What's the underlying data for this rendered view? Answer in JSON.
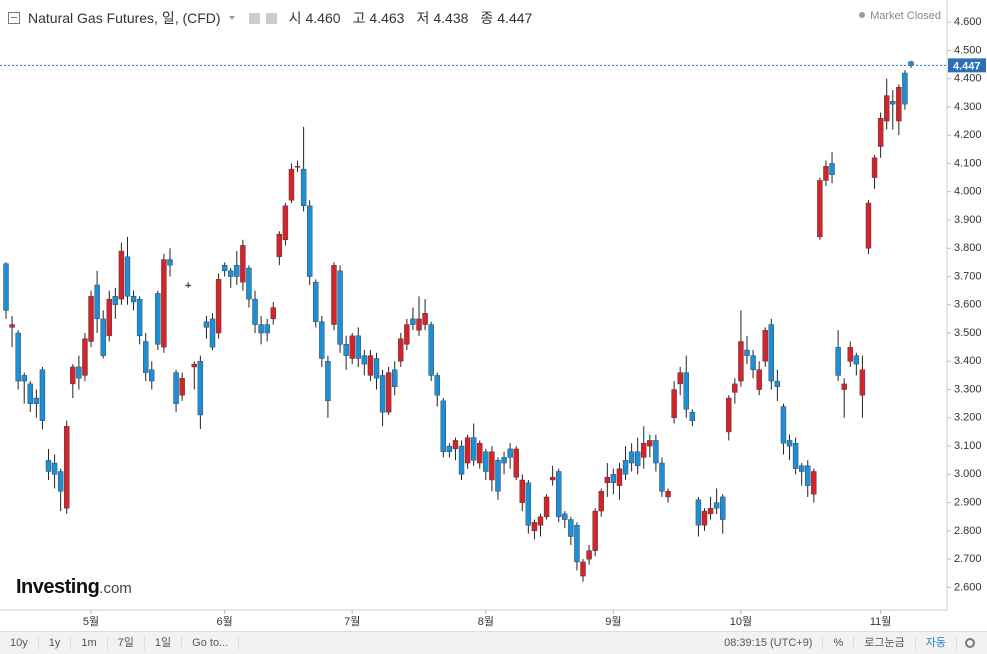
{
  "header": {
    "open": {
      "label": "시",
      "value": "4.460"
    },
    "high": {
      "label": "고",
      "value": "4.463"
    },
    "low": {
      "label": "저",
      "value": "4.438"
    },
    "close": {
      "label": "종",
      "value": "4.447"
    },
    "status": "Market Closed"
  },
  "logo": {
    "name": "Investing",
    "suffix": ".com"
  },
  "toolbar": {
    "ranges": [
      "10y",
      "1y",
      "1m",
      "7일",
      "1일"
    ],
    "goto": "Go to...",
    "time": "08:39:15 (UTC+9)",
    "percent": "%",
    "log": "로그눈금",
    "auto": "자동"
  },
  "chart_data": {
    "type": "candlestick",
    "title": "Natural Gas Futures, 일, (CFD)",
    "up_color": "#d3242b",
    "down_color": "#1e8ed6",
    "wick_color": "#222",
    "ylim": [
      2.52,
      4.65
    ],
    "yticks": [
      {
        "value": 2.6,
        "label": "2.600"
      },
      {
        "value": 2.7,
        "label": "2.700"
      },
      {
        "value": 2.8,
        "label": "2.800"
      },
      {
        "value": 2.9,
        "label": "2.900"
      },
      {
        "value": 3.0,
        "label": "3.000"
      },
      {
        "value": 3.1,
        "label": "3.100"
      },
      {
        "value": 3.2,
        "label": "3.200"
      },
      {
        "value": 3.3,
        "label": "3.300"
      },
      {
        "value": 3.4,
        "label": "3.400"
      },
      {
        "value": 3.5,
        "label": "3.500"
      },
      {
        "value": 3.6,
        "label": "3.600"
      },
      {
        "value": 3.7,
        "label": "3.700"
      },
      {
        "value": 3.8,
        "label": "3.800"
      },
      {
        "value": 3.9,
        "label": "3.900"
      },
      {
        "value": 4.0,
        "label": "4.000"
      },
      {
        "value": 4.1,
        "label": "4.100"
      },
      {
        "value": 4.2,
        "label": "4.200"
      },
      {
        "value": 4.3,
        "label": "4.300"
      },
      {
        "value": 4.4,
        "label": "4.400"
      },
      {
        "value": 4.5,
        "label": "4.500"
      },
      {
        "value": 4.6,
        "label": "4.600"
      }
    ],
    "last_price": {
      "value": 4.447,
      "label": "4.447",
      "color": "#2a6fb8"
    },
    "categories": [
      null,
      null,
      null,
      null,
      null,
      null,
      null,
      null,
      null,
      null,
      null,
      null,
      null,
      null,
      "5월",
      null,
      null,
      null,
      null,
      null,
      null,
      null,
      null,
      null,
      null,
      null,
      null,
      null,
      null,
      null,
      null,
      null,
      null,
      null,
      null,
      null,
      "6월",
      null,
      null,
      null,
      null,
      null,
      null,
      null,
      null,
      null,
      null,
      null,
      null,
      null,
      null,
      null,
      null,
      null,
      null,
      null,
      null,
      "7월",
      null,
      null,
      null,
      null,
      null,
      null,
      null,
      null,
      null,
      null,
      null,
      null,
      null,
      null,
      null,
      null,
      null,
      null,
      null,
      null,
      null,
      "8월",
      null,
      null,
      null,
      null,
      null,
      null,
      null,
      null,
      null,
      null,
      null,
      null,
      null,
      null,
      null,
      null,
      null,
      null,
      null,
      null,
      "9월",
      null,
      null,
      null,
      null,
      null,
      null,
      null,
      null,
      null,
      null,
      null,
      null,
      null,
      null,
      null,
      null,
      null,
      null,
      null,
      null,
      "10월",
      null,
      null,
      null,
      null,
      null,
      null,
      null,
      null,
      null,
      null,
      null,
      null,
      null,
      null,
      null,
      null,
      null,
      null,
      null,
      null,
      null,
      null,
      "11월",
      null,
      null,
      null,
      null,
      null
    ],
    "ohlc": [
      [
        3.745,
        3.75,
        3.55,
        3.58
      ],
      [
        3.52,
        3.56,
        3.45,
        3.53
      ],
      [
        3.5,
        3.51,
        3.3,
        3.33
      ],
      [
        3.35,
        3.36,
        3.25,
        3.33
      ],
      [
        3.32,
        3.33,
        3.22,
        3.25
      ],
      [
        3.27,
        3.3,
        3.2,
        3.25
      ],
      [
        3.37,
        3.38,
        3.16,
        3.19
      ],
      [
        3.05,
        3.09,
        2.98,
        3.01
      ],
      [
        3.04,
        3.07,
        2.95,
        3.0
      ],
      [
        3.01,
        3.02,
        2.87,
        2.94
      ],
      [
        2.88,
        3.19,
        2.86,
        3.17
      ],
      [
        3.32,
        3.39,
        3.27,
        3.38
      ],
      [
        3.38,
        3.42,
        3.3,
        3.34
      ],
      [
        3.35,
        3.5,
        3.33,
        3.48
      ],
      [
        3.47,
        3.65,
        3.45,
        3.63
      ],
      [
        3.67,
        3.72,
        3.5,
        3.55
      ],
      [
        3.55,
        3.58,
        3.41,
        3.42
      ],
      [
        3.49,
        3.65,
        3.47,
        3.62
      ],
      [
        3.63,
        3.66,
        3.55,
        3.6
      ],
      [
        3.62,
        3.82,
        3.6,
        3.79
      ],
      [
        3.77,
        3.84,
        3.6,
        3.63
      ],
      [
        3.63,
        3.65,
        3.58,
        3.61
      ],
      [
        3.62,
        3.63,
        3.46,
        3.49
      ],
      [
        3.47,
        3.5,
        3.33,
        3.36
      ],
      [
        3.37,
        3.4,
        3.3,
        3.33
      ],
      [
        3.64,
        3.65,
        3.44,
        3.46
      ],
      [
        3.45,
        3.78,
        3.43,
        3.76
      ],
      [
        3.76,
        3.8,
        3.7,
        3.74
      ],
      [
        3.36,
        3.37,
        3.22,
        3.25
      ],
      [
        3.28,
        3.36,
        3.26,
        3.34
      ],
      [
        3.67,
        3.68,
        3.66,
        3.67
      ],
      [
        3.38,
        3.4,
        3.3,
        3.39
      ],
      [
        3.4,
        3.42,
        3.16,
        3.21
      ],
      [
        3.54,
        3.56,
        3.48,
        3.52
      ],
      [
        3.55,
        3.57,
        3.44,
        3.45
      ],
      [
        3.5,
        3.71,
        3.48,
        3.69
      ],
      [
        3.74,
        3.75,
        3.7,
        3.72
      ],
      [
        3.72,
        3.73,
        3.66,
        3.7
      ],
      [
        3.74,
        3.79,
        3.67,
        3.7
      ],
      [
        3.68,
        3.83,
        3.65,
        3.81
      ],
      [
        3.73,
        3.74,
        3.59,
        3.62
      ],
      [
        3.62,
        3.65,
        3.5,
        3.53
      ],
      [
        3.53,
        3.56,
        3.46,
        3.5
      ],
      [
        3.53,
        3.55,
        3.47,
        3.5
      ],
      [
        3.55,
        3.61,
        3.53,
        3.59
      ],
      [
        3.77,
        3.86,
        3.74,
        3.85
      ],
      [
        3.83,
        3.96,
        3.81,
        3.95
      ],
      [
        3.97,
        4.1,
        3.96,
        4.08
      ],
      [
        4.09,
        4.11,
        4.07,
        4.09
      ],
      [
        4.08,
        4.23,
        3.93,
        3.95
      ],
      [
        3.95,
        3.97,
        3.67,
        3.7
      ],
      [
        3.68,
        3.69,
        3.52,
        3.54
      ],
      [
        3.54,
        3.56,
        3.38,
        3.41
      ],
      [
        3.4,
        3.42,
        3.2,
        3.26
      ],
      [
        3.53,
        3.75,
        3.51,
        3.74
      ],
      [
        3.72,
        3.74,
        3.43,
        3.46
      ],
      [
        3.46,
        3.49,
        3.37,
        3.42
      ],
      [
        3.41,
        3.5,
        3.39,
        3.49
      ],
      [
        3.49,
        3.52,
        3.38,
        3.41
      ],
      [
        3.42,
        3.44,
        3.35,
        3.39
      ],
      [
        3.35,
        3.44,
        3.33,
        3.42
      ],
      [
        3.41,
        3.43,
        3.3,
        3.34
      ],
      [
        3.35,
        3.37,
        3.17,
        3.22
      ],
      [
        3.22,
        3.38,
        3.21,
        3.36
      ],
      [
        3.37,
        3.4,
        3.28,
        3.31
      ],
      [
        3.4,
        3.5,
        3.38,
        3.48
      ],
      [
        3.46,
        3.55,
        3.44,
        3.53
      ],
      [
        3.55,
        3.59,
        3.51,
        3.53
      ],
      [
        3.51,
        3.63,
        3.49,
        3.55
      ],
      [
        3.53,
        3.62,
        3.51,
        3.57
      ],
      [
        3.53,
        3.54,
        3.33,
        3.35
      ],
      [
        3.35,
        3.36,
        3.24,
        3.28
      ],
      [
        3.26,
        3.27,
        3.06,
        3.08
      ],
      [
        3.1,
        3.11,
        3.06,
        3.08
      ],
      [
        3.09,
        3.13,
        3.05,
        3.12
      ],
      [
        3.1,
        3.12,
        2.98,
        3.0
      ],
      [
        3.04,
        3.14,
        3.02,
        3.13
      ],
      [
        3.13,
        3.18,
        3.03,
        3.05
      ],
      [
        3.04,
        3.12,
        3.02,
        3.11
      ],
      [
        3.08,
        3.09,
        2.98,
        3.01
      ],
      [
        2.98,
        3.1,
        2.94,
        3.08
      ],
      [
        3.05,
        3.06,
        2.91,
        2.94
      ],
      [
        3.06,
        3.08,
        3.0,
        3.04
      ],
      [
        3.09,
        3.11,
        3.02,
        3.06
      ],
      [
        2.99,
        3.1,
        2.98,
        3.09
      ],
      [
        2.9,
        3.0,
        2.87,
        2.98
      ],
      [
        2.97,
        2.98,
        2.79,
        2.82
      ],
      [
        2.8,
        2.84,
        2.77,
        2.83
      ],
      [
        2.82,
        2.86,
        2.78,
        2.85
      ],
      [
        2.85,
        2.93,
        2.84,
        2.92
      ],
      [
        2.98,
        3.03,
        2.96,
        2.99
      ],
      [
        3.01,
        3.02,
        2.83,
        2.85
      ],
      [
        2.86,
        2.87,
        2.81,
        2.84
      ],
      [
        2.84,
        2.85,
        2.75,
        2.78
      ],
      [
        2.82,
        2.83,
        2.66,
        2.69
      ],
      [
        2.64,
        2.7,
        2.62,
        2.69
      ],
      [
        2.7,
        2.75,
        2.68,
        2.73
      ],
      [
        2.73,
        2.88,
        2.71,
        2.87
      ],
      [
        2.87,
        2.95,
        2.85,
        2.94
      ],
      [
        2.97,
        3.04,
        2.92,
        2.99
      ],
      [
        3.0,
        3.02,
        2.93,
        2.97
      ],
      [
        2.96,
        3.04,
        2.91,
        3.02
      ],
      [
        3.05,
        3.1,
        2.98,
        3.0
      ],
      [
        3.08,
        3.11,
        3.01,
        3.04
      ],
      [
        3.08,
        3.13,
        3.0,
        3.03
      ],
      [
        3.06,
        3.17,
        3.02,
        3.11
      ],
      [
        3.1,
        3.14,
        3.06,
        3.12
      ],
      [
        3.12,
        3.14,
        3.01,
        3.04
      ],
      [
        3.04,
        3.06,
        2.92,
        2.94
      ],
      [
        2.92,
        2.95,
        2.9,
        2.94
      ],
      [
        3.2,
        3.33,
        3.18,
        3.3
      ],
      [
        3.32,
        3.38,
        3.28,
        3.36
      ],
      [
        3.36,
        3.42,
        3.2,
        3.23
      ],
      [
        3.22,
        3.23,
        3.17,
        3.19
      ],
      [
        2.91,
        2.92,
        2.78,
        2.82
      ],
      [
        2.82,
        2.88,
        2.8,
        2.87
      ],
      [
        2.86,
        2.92,
        2.84,
        2.88
      ],
      [
        2.9,
        2.95,
        2.86,
        2.88
      ],
      [
        2.92,
        2.93,
        2.79,
        2.84
      ],
      [
        3.15,
        3.28,
        3.12,
        3.27
      ],
      [
        3.29,
        3.34,
        3.25,
        3.32
      ],
      [
        3.33,
        3.58,
        3.31,
        3.47
      ],
      [
        3.44,
        3.49,
        3.39,
        3.42
      ],
      [
        3.42,
        3.44,
        3.34,
        3.37
      ],
      [
        3.3,
        3.4,
        3.28,
        3.37
      ],
      [
        3.4,
        3.52,
        3.38,
        3.51
      ],
      [
        3.53,
        3.55,
        3.3,
        3.33
      ],
      [
        3.33,
        3.37,
        3.26,
        3.31
      ],
      [
        3.24,
        3.25,
        3.07,
        3.11
      ],
      [
        3.12,
        3.14,
        3.05,
        3.1
      ],
      [
        3.11,
        3.13,
        3.0,
        3.02
      ],
      [
        3.03,
        3.04,
        2.96,
        3.01
      ],
      [
        3.03,
        3.05,
        2.92,
        2.96
      ],
      [
        2.93,
        3.02,
        2.9,
        3.01
      ],
      [
        3.84,
        4.05,
        3.83,
        4.04
      ],
      [
        4.04,
        4.11,
        4.02,
        4.09
      ],
      [
        4.1,
        4.14,
        4.03,
        4.06
      ],
      [
        3.45,
        3.51,
        3.33,
        3.35
      ],
      [
        3.3,
        3.34,
        3.2,
        3.32
      ],
      [
        3.4,
        3.47,
        3.38,
        3.45
      ],
      [
        3.42,
        3.43,
        3.35,
        3.39
      ],
      [
        3.28,
        3.42,
        3.2,
        3.37
      ],
      [
        3.8,
        3.97,
        3.78,
        3.96
      ],
      [
        4.05,
        4.13,
        4.01,
        4.12
      ],
      [
        4.16,
        4.28,
        4.12,
        4.26
      ],
      [
        4.25,
        4.4,
        4.22,
        4.34
      ],
      [
        4.32,
        4.36,
        4.22,
        4.31
      ],
      [
        4.25,
        4.38,
        4.2,
        4.37
      ],
      [
        4.42,
        4.43,
        4.29,
        4.31
      ],
      [
        4.46,
        4.463,
        4.438,
        4.447
      ]
    ]
  }
}
